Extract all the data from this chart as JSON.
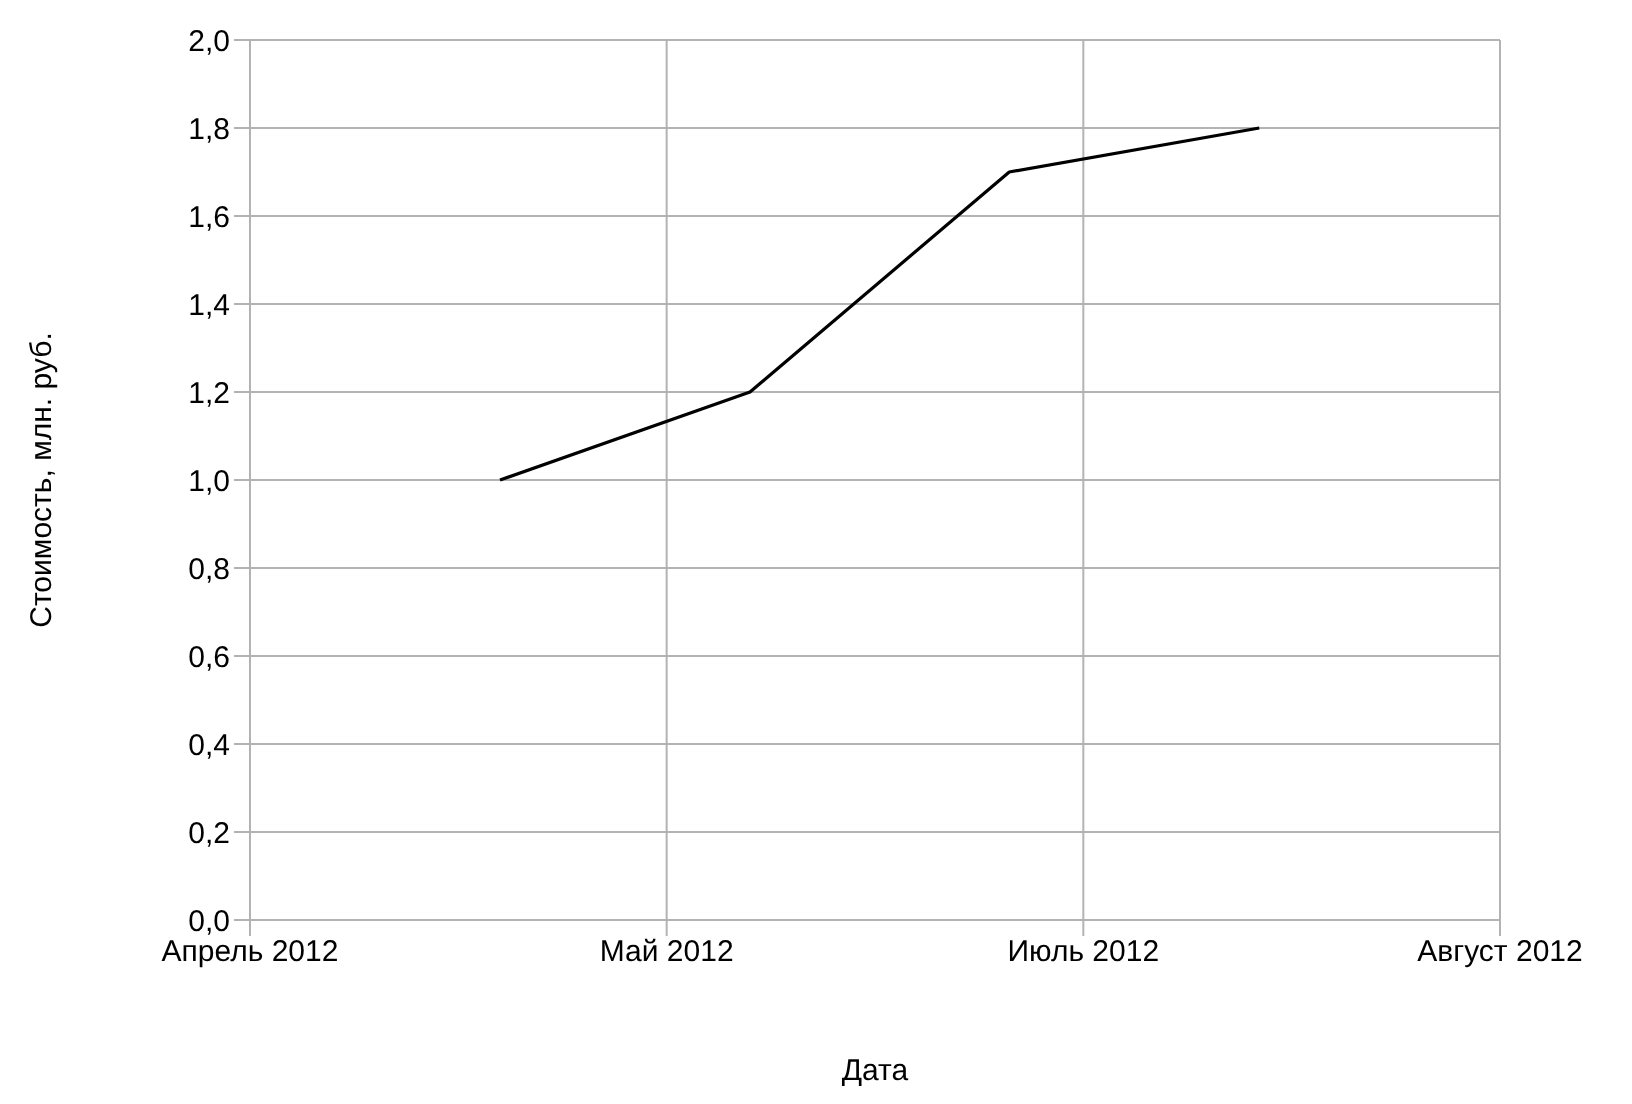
{
  "chart_data": {
    "type": "line",
    "xlabel": "Дата",
    "ylabel": "Стоимость, млн. руб.",
    "x": [
      "2012-05-07",
      "2012-06-03",
      "2012-07-01",
      "2012-07-28"
    ],
    "series": [
      {
        "color": "#000000",
        "values": [
          1.0,
          1.2,
          1.7,
          1.8
        ]
      }
    ],
    "xlim": [
      "2012-04-10",
      "2012-08-23"
    ],
    "xticks": [
      {
        "value": "2012-04-10",
        "label": "Апрель 2012"
      },
      {
        "value": "2012-05-25",
        "label": "Май 2012"
      },
      {
        "value": "2012-07-09",
        "label": "Июль 2012"
      },
      {
        "value": "2012-08-23",
        "label": "Август 2012"
      }
    ],
    "ylim": [
      0,
      2
    ],
    "yticks": [
      {
        "value": 0,
        "label": "0,0"
      },
      {
        "value": 0.2,
        "label": "0,2"
      },
      {
        "value": 0.4,
        "label": "0,4"
      },
      {
        "value": 0.6,
        "label": "0,6"
      },
      {
        "value": 0.8,
        "label": "0,8"
      },
      {
        "value": 1,
        "label": "1,0"
      },
      {
        "value": 1.2,
        "label": "1,2"
      },
      {
        "value": 1.4,
        "label": "1,4"
      },
      {
        "value": 1.6,
        "label": "1,6"
      },
      {
        "value": 1.8,
        "label": "1,8"
      },
      {
        "value": 2,
        "label": "2,0"
      }
    ],
    "grid": true,
    "legend": false,
    "marker": "none",
    "line_style": "solid"
  }
}
